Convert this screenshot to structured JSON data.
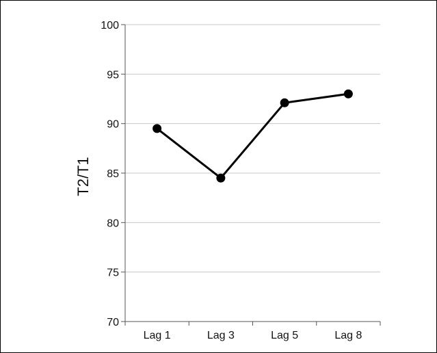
{
  "chart_data": {
    "type": "line",
    "title": "",
    "xlabel": "",
    "ylabel": "T2/T1",
    "categories": [
      "Lag 1",
      "Lag 3",
      "Lag 5",
      "Lag 8"
    ],
    "series": [
      {
        "values": [
          89.5,
          84.5,
          92.1,
          93.0
        ],
        "color": "#000000"
      }
    ],
    "ylim": [
      70,
      100
    ],
    "yticks": [
      70,
      75,
      80,
      85,
      90,
      95,
      100
    ],
    "grid": true,
    "legend": "none"
  }
}
